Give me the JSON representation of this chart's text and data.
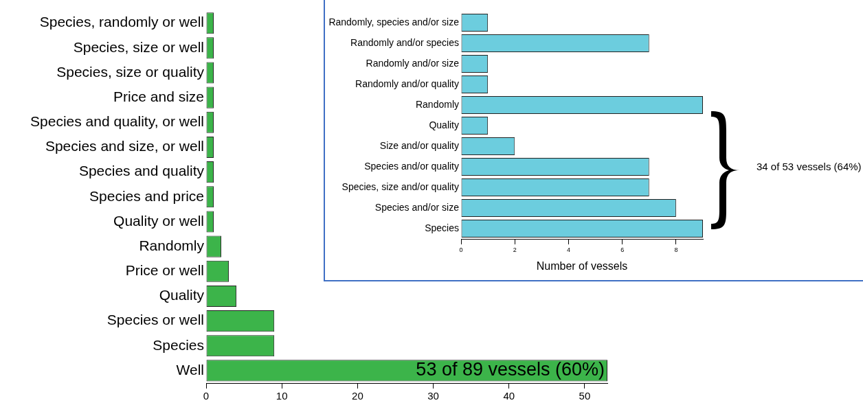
{
  "chart_data": [
    {
      "type": "bar",
      "orientation": "horizontal",
      "categories": [
        "Species, randomly or well",
        "Species, size or well",
        "Species, size or quality",
        "Price and size",
        "Species and quality, or well",
        "Species and size, or well",
        "Species and quality",
        "Species and price",
        "Quality or well",
        "Randomly",
        "Price or well",
        "Quality",
        "Species or well",
        "Species",
        "Well"
      ],
      "series": [
        {
          "color": "#3cb44a",
          "values": [
            1,
            1,
            1,
            1,
            1,
            1,
            1,
            1,
            1,
            2,
            3,
            4,
            9,
            9,
            53
          ]
        }
      ],
      "xlim": [
        0,
        53
      ],
      "xticks": [
        0,
        10,
        20,
        30,
        40,
        50
      ],
      "grid": false,
      "legend": false,
      "annotations": [
        {
          "text": "53 of 89 vessels (60%)",
          "x": 53,
          "y": "Well"
        }
      ]
    },
    {
      "type": "bar",
      "orientation": "horizontal",
      "categories": [
        "Randomly, species and/or size",
        "Randomly and/or species",
        "Randomly and/or size",
        "Randomly and/or quality",
        "Randomly",
        "Quality",
        "Size and/or quality",
        "Species and/or quality",
        "Species, size and/or quality",
        "Species and/or size",
        "Species"
      ],
      "series": [
        {
          "color": "#6ccdde",
          "values": [
            1,
            7,
            1,
            1,
            9,
            1,
            2,
            7,
            7,
            8,
            9
          ]
        }
      ],
      "xlim": [
        0,
        9
      ],
      "xticks": [
        0,
        2,
        4,
        6,
        8
      ],
      "xlabel": "Number of vessels",
      "grid": false,
      "legend": false,
      "annotations": [
        "34 of 53 vessels (64%)"
      ]
    }
  ]
}
